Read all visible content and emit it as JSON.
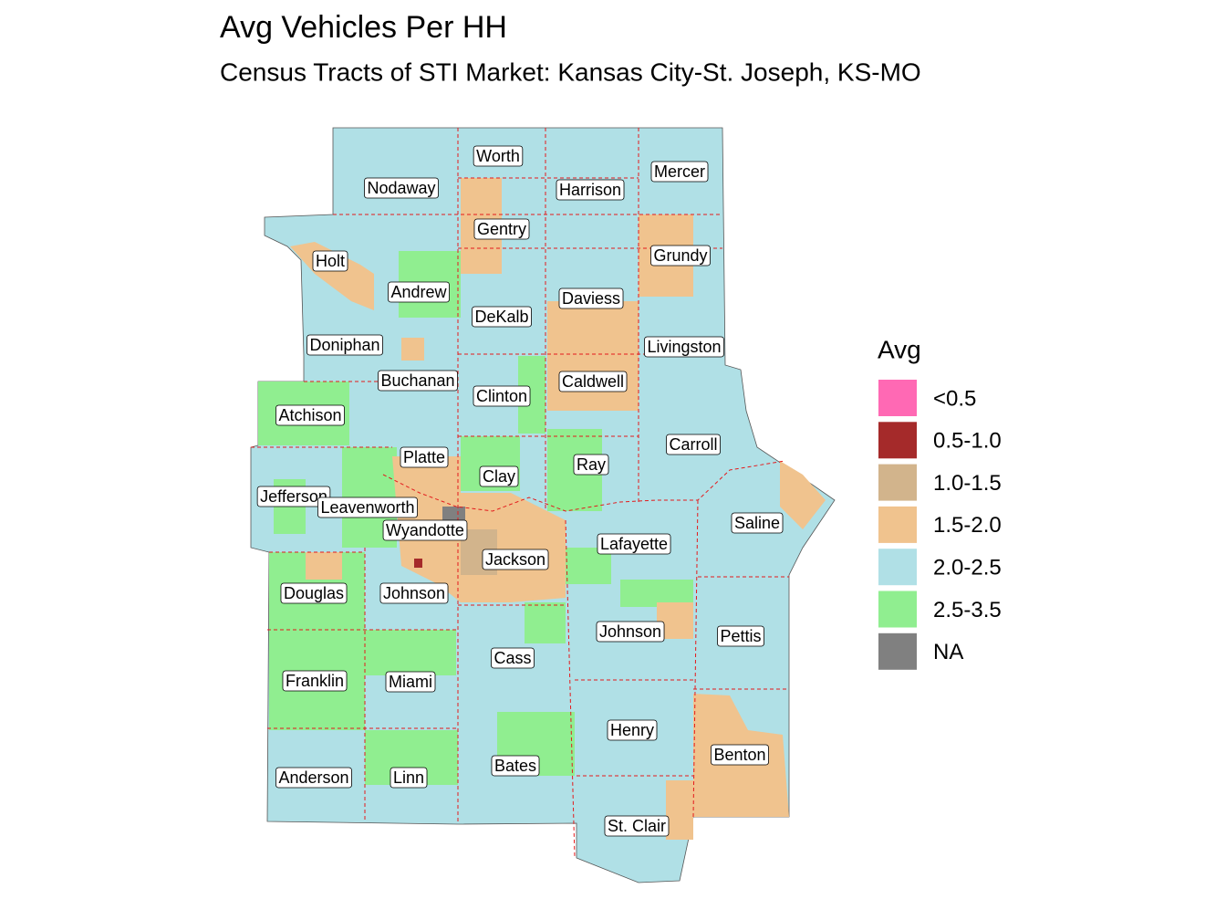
{
  "header": {
    "title": "Avg Vehicles Per HH",
    "subtitle": "Census Tracts of STI Market: Kansas City-St. Joseph, KS-MO"
  },
  "legend": {
    "title": "Avg",
    "items": [
      {
        "label": "<0.5",
        "color": "#ff69b4"
      },
      {
        "label": "0.5-1.0",
        "color": "#a52a2a"
      },
      {
        "label": "1.0-1.5",
        "color": "#d2b48c"
      },
      {
        "label": "1.5-2.0",
        "color": "#f0c38e"
      },
      {
        "label": "2.0-2.5",
        "color": "#b0e0e6"
      },
      {
        "label": "2.5-3.5",
        "color": "#90ee90"
      },
      {
        "label": "NA",
        "color": "#808080"
      }
    ]
  },
  "counties": [
    "Worth",
    "Nodaway",
    "Harrison",
    "Mercer",
    "Gentry",
    "Holt",
    "Grundy",
    "Andrew",
    "Daviess",
    "DeKalb",
    "Doniphan",
    "Livingston",
    "Buchanan",
    "Caldwell",
    "Clinton",
    "Atchison",
    "Carroll",
    "Platte",
    "Ray",
    "Clay",
    "Jefferson",
    "Leavenworth",
    "Saline",
    "Wyandotte",
    "Lafayette",
    "Jackson",
    "Douglas",
    "Johnson",
    "Johnson",
    "Pettis",
    "Cass",
    "Franklin",
    "Miami",
    "Henry",
    "Benton",
    "Bates",
    "Anderson",
    "Linn",
    "St. Clair"
  ]
}
